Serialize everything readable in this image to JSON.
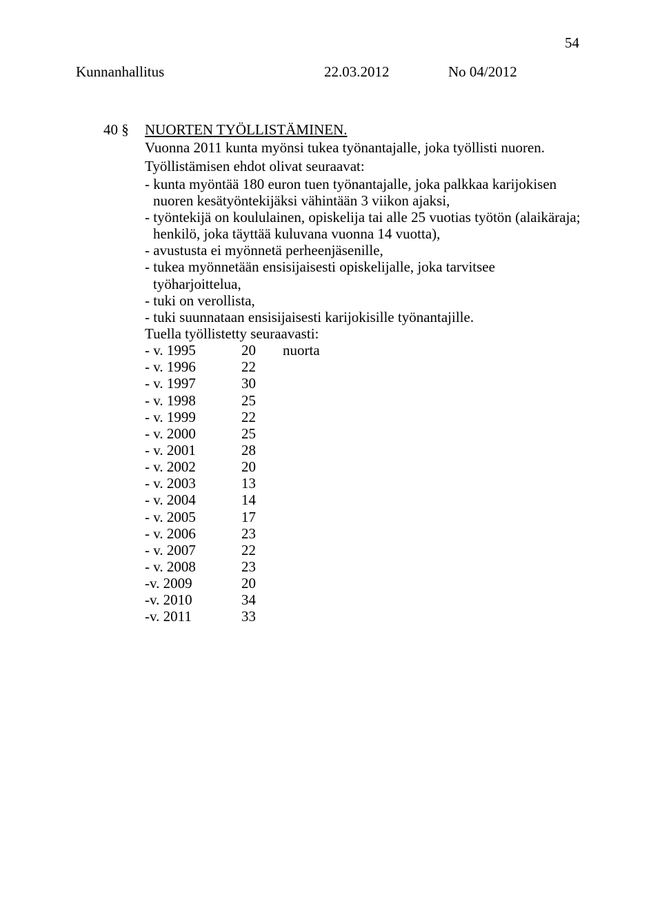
{
  "page_number": "54",
  "header": {
    "board": "Kunnanhallitus",
    "date": "22.03.2012",
    "docno": "No 04/2012"
  },
  "section": {
    "num": "40 §",
    "title": "NUORTEN TYÖLLISTÄMINEN.",
    "intro": "Vuonna 2011 kunta myönsi tukea työnantajalle, joka työllisti nuoren.",
    "conditions_intro": "Työllistämisen ehdot olivat seuraavat:",
    "bullets": {
      "b1": "- kunta myöntää 180 euron tuen työnantajalle, joka palkkaa karijokisen nuoren kesätyöntekijäksi vähintään 3 viikon ajaksi,",
      "b2": "- työntekijä on koululainen, opiskelija tai alle 25 vuotias työtön (alaikäraja; henkilö, joka täyttää kuluvana vuonna  14 vuotta),",
      "b3": "- avustusta ei myönnetä perheenjäsenille,",
      "b4": "- tukea myönnetään ensisijaisesti opiskelijalle, joka tarvitsee  työharjoittelua,",
      "b5": "- tuki on verollista,",
      "b6": "- tuki suunnataan ensisijaisesti karijokisille työnantajille."
    },
    "table_intro": "Tuella työllistetty seuraavasti:",
    "years": [
      {
        "label": "- v. 1995",
        "value": "20",
        "extra": "nuorta"
      },
      {
        "label": "- v. 1996",
        "value": "22",
        "extra": ""
      },
      {
        "label": "- v. 1997",
        "value": "30",
        "extra": ""
      },
      {
        "label": "- v. 1998",
        "value": "25",
        "extra": ""
      },
      {
        "label": "- v. 1999",
        "value": "22",
        "extra": ""
      },
      {
        "label": "- v. 2000",
        "value": "25",
        "extra": ""
      },
      {
        "label": "- v. 2001",
        "value": "28",
        "extra": ""
      },
      {
        "label": "- v. 2002",
        "value": "20",
        "extra": ""
      },
      {
        "label": "- v. 2003",
        "value": "13",
        "extra": ""
      },
      {
        "label": "- v. 2004",
        "value": "14",
        "extra": ""
      },
      {
        "label": "- v. 2005",
        "value": "17",
        "extra": ""
      },
      {
        "label": "- v. 2006",
        "value": "23",
        "extra": ""
      },
      {
        "label": "- v. 2007",
        "value": "22",
        "extra": ""
      },
      {
        "label": "- v. 2008",
        "value": "23",
        "extra": ""
      },
      {
        "label": "-v.  2009",
        "value": "20",
        "extra": ""
      },
      {
        "label": "-v.  2010",
        "value": "34",
        "extra": ""
      },
      {
        "label": "-v.  2011",
        "value": "33",
        "extra": ""
      }
    ]
  }
}
